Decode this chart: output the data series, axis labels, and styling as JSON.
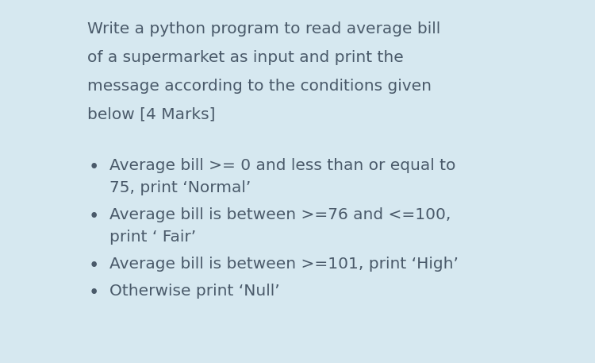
{
  "bg_color": "#d6e8f0",
  "text_color": "#4a5a6a",
  "title_lines": [
    "Write a python program to read average bill",
    "of a supermarket as input and print the",
    "message according to the conditions given",
    "below [4 Marks]"
  ],
  "bullet_items": [
    [
      "Average bill >= 0 and less than or equal to",
      "75, print ‘Normal’"
    ],
    [
      "Average bill is between >=76 and <=100,",
      "print ‘ Fair’"
    ],
    [
      "Average bill is between >=101, print ‘High’"
    ],
    [
      "Otherwise print ‘Null’"
    ]
  ],
  "title_fontsize": 14.5,
  "bullet_fontsize": 14.5,
  "figsize": [
    7.5,
    4.57
  ],
  "dpi": 100
}
